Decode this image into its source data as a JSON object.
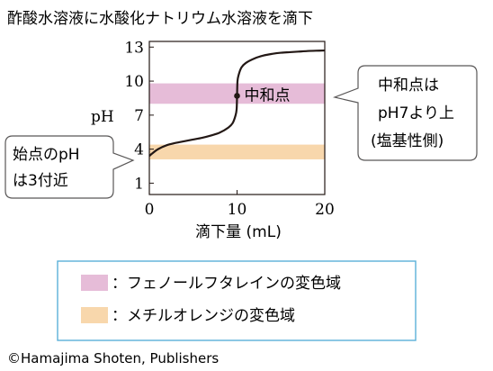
{
  "title": "酢酸水溶液に水酸化ナトリウム水溶液を滴下",
  "chart_data": {
    "type": "line",
    "xlabel": "滴下量 (mL)",
    "ylabel": "pH",
    "xlim": [
      0,
      20
    ],
    "ylim": [
      0,
      13.5
    ],
    "x_ticks": [
      "0",
      "10",
      "20"
    ],
    "y_ticks": [
      "1",
      "4",
      "7",
      "10",
      "13"
    ],
    "grid": false,
    "series": [
      {
        "x": [
          0,
          0.3,
          1,
          2,
          3,
          4,
          5,
          6,
          7,
          8,
          9,
          9.5,
          9.8,
          9.95,
          10,
          10.05,
          10.2,
          10.5,
          11,
          12,
          13,
          14,
          15,
          16,
          17,
          18,
          19,
          20
        ],
        "y": [
          3.4,
          3.6,
          4.0,
          4.35,
          4.55,
          4.7,
          4.85,
          5.0,
          5.2,
          5.45,
          5.9,
          6.3,
          6.9,
          7.5,
          8.7,
          10.0,
          10.6,
          11.2,
          11.6,
          12.0,
          12.25,
          12.4,
          12.5,
          12.55,
          12.6,
          12.65,
          12.68,
          12.7
        ]
      }
    ],
    "bands": [
      {
        "name": "フェノールフタレインの変色域",
        "from": 8.0,
        "to": 9.8,
        "color": "#e6bcd8"
      },
      {
        "name": "メチルオレンジの変色域",
        "from": 3.1,
        "to": 4.4,
        "color": "#f8d7ac"
      }
    ],
    "point": {
      "x": 10,
      "y": 8.7,
      "label": "中和点"
    },
    "annotations": {
      "right": [
        "中和点は",
        "pH7より上",
        "(塩基性側)"
      ],
      "left": [
        "始点のpH",
        "は3付近"
      ]
    },
    "legend": {
      "items": [
        "：フェノールフタレインの変色域",
        "：メチルオレンジの変色域"
      ],
      "placement": "bottom"
    }
  },
  "credit": "©Hamajima Shoten, Publishers",
  "colors": {
    "curve": "#231815",
    "legend_border": "#5ab0d8",
    "callout_border": "#595757"
  }
}
